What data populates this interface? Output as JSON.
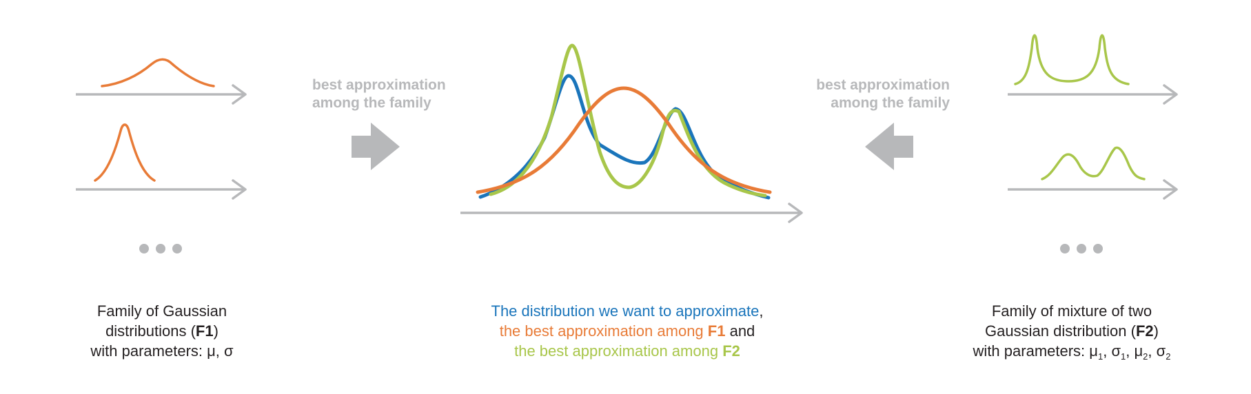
{
  "left_panel": {
    "caption_line1": "Family of Gaussian",
    "caption_line2_pre": "distributions (",
    "caption_line2_bold": "F1",
    "caption_line2_post": ")",
    "caption_line3": "with parameters: μ, σ"
  },
  "arrow_left": {
    "label_line1": "best approximation",
    "label_line2": "among the family"
  },
  "arrow_right": {
    "label_line1": "best approximation",
    "label_line2": "among the family"
  },
  "center_panel": {
    "line1": "The distribution we want to approximate",
    "line1_comma": ",",
    "line2_pre": "the best approximation among ",
    "line2_bold": "F1",
    "line2_post": " and",
    "line3_pre": "the best approximation among ",
    "line3_bold": "F2"
  },
  "right_panel": {
    "caption_line1": "Family of mixture of two",
    "caption_line2_pre": "Gaussian distribution (",
    "caption_line2_bold": "F2",
    "caption_line2_post": ")",
    "params_pre": "with parameters: ",
    "mu": "μ",
    "sigma": "σ",
    "sub1": "1",
    "sub2": "2",
    "sep": ", "
  },
  "colors": {
    "target_blue": "#1a75bb",
    "f1_orange": "#e87b37",
    "f2_green": "#a8c64a",
    "axis_gray": "#b7b8ba"
  }
}
